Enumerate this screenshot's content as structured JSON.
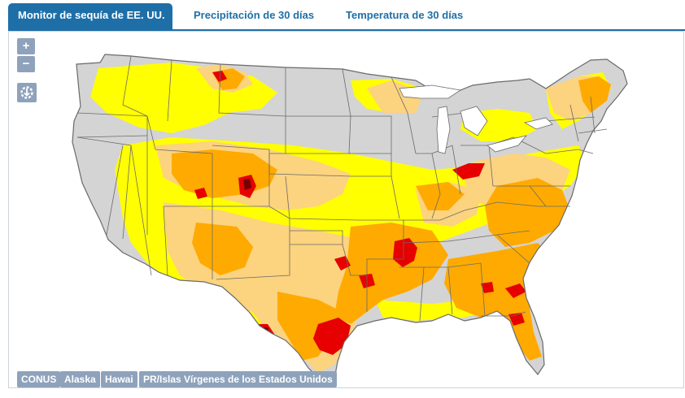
{
  "tabs": [
    {
      "label": "Monitor de sequía de EE. UU.",
      "active": true
    },
    {
      "label": "Precipitación de 30 días",
      "active": false
    },
    {
      "label": "Temperatura de 30 días",
      "active": false
    }
  ],
  "zoom": {
    "in_label": "+",
    "out_label": "−"
  },
  "download": {
    "icon": "download-gear-icon"
  },
  "regions": [
    {
      "label": "CONUS"
    },
    {
      "label": "Alaska"
    },
    {
      "label": "Hawai"
    },
    {
      "label": "PR/Islas Vírgenes de los Estados Unidos"
    }
  ],
  "colors": {
    "tab_blue": "#1e6fa8",
    "no_drought": "#d3d3d3",
    "D0": "#ffff00",
    "D1": "#fcd37f",
    "D2": "#ffaa00",
    "D3": "#e60000",
    "D4": "#730000",
    "state_border": "#666666",
    "button": "#8ea2bb"
  }
}
